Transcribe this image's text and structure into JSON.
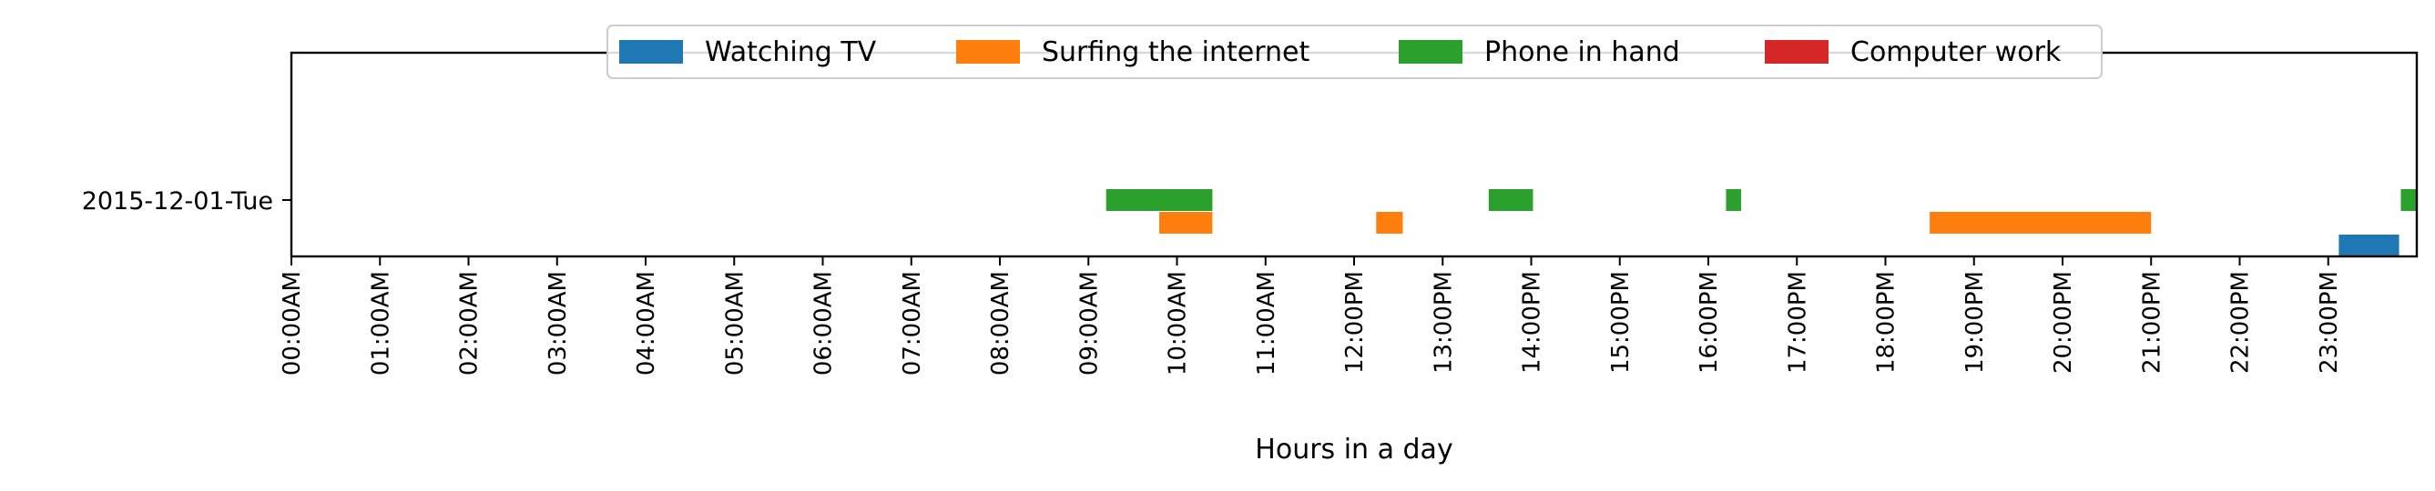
{
  "chart_data": {
    "type": "timeline-bar",
    "title": "",
    "xlabel": "Hours in a day",
    "ylabel": "",
    "xlim": [
      0,
      24
    ],
    "row_label": "2015-12-01-Tue",
    "x_ticks": [
      "00:00AM",
      "01:00AM",
      "02:00AM",
      "03:00AM",
      "04:00AM",
      "05:00AM",
      "06:00AM",
      "07:00AM",
      "08:00AM",
      "09:00AM",
      "10:00AM",
      "11:00AM",
      "12:00PM",
      "13:00PM",
      "14:00PM",
      "15:00PM",
      "16:00PM",
      "17:00PM",
      "18:00PM",
      "19:00PM",
      "20:00PM",
      "21:00PM",
      "22:00PM",
      "23:00PM"
    ],
    "legend": [
      {
        "label": "Watching TV",
        "color": "#1f77b4"
      },
      {
        "label": "Surfing the internet",
        "color": "#ff7f0e"
      },
      {
        "label": "Phone in hand",
        "color": "#2ca02c"
      },
      {
        "label": "Computer work",
        "color": "#d62728"
      }
    ],
    "series": [
      {
        "name": "Watching TV",
        "color": "#1f77b4",
        "lane": -1.0,
        "intervals": [
          [
            23.12,
            23.8
          ]
        ]
      },
      {
        "name": "Surfing the internet",
        "color": "#ff7f0e",
        "lane": -0.5,
        "intervals": [
          [
            9.8,
            10.4
          ],
          [
            12.25,
            12.55
          ],
          [
            18.5,
            21.0
          ]
        ]
      },
      {
        "name": "Phone in hand",
        "color": "#2ca02c",
        "lane": 0.0,
        "intervals": [
          [
            9.2,
            10.4
          ],
          [
            13.52,
            14.02
          ],
          [
            16.2,
            16.37
          ],
          [
            23.82,
            24.0
          ]
        ]
      },
      {
        "name": "Computer work",
        "color": "#d62728",
        "lane": 0.5,
        "intervals": []
      }
    ]
  }
}
